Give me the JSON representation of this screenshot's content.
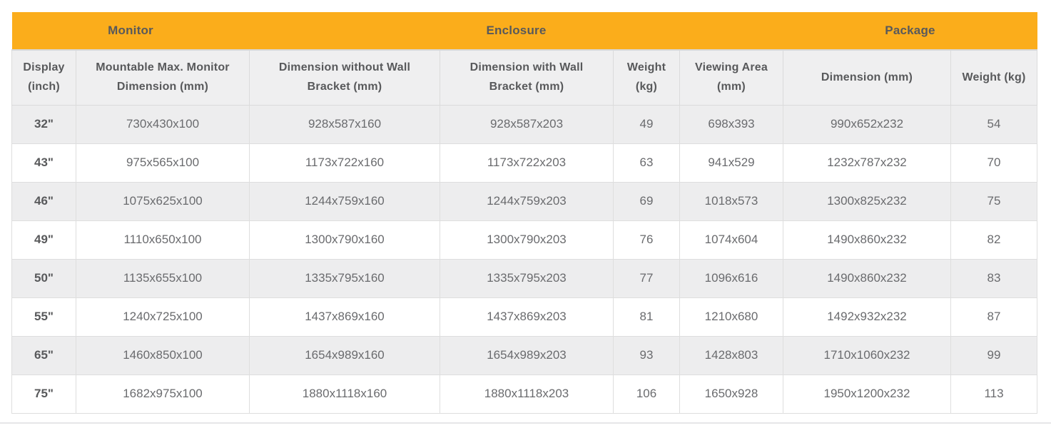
{
  "table": {
    "groups": [
      {
        "label": "Monitor",
        "span": 2
      },
      {
        "label": "Enclosure",
        "span": 4
      },
      {
        "label": "Package",
        "span": 2
      }
    ],
    "columns": [
      "Display (inch)",
      "Mountable Max. Monitor Dimension (mm)",
      "Dimension without Wall Bracket (mm)",
      "Dimension with Wall Bracket (mm)",
      "Weight (kg)",
      "Viewing Area (mm)",
      "Dimension (mm)",
      "Weight (kg)"
    ],
    "rows": [
      [
        "32\"",
        "730x430x100",
        "928x587x160",
        "928x587x203",
        "49",
        "698x393",
        "990x652x232",
        "54"
      ],
      [
        "43\"",
        "975x565x100",
        "1173x722x160",
        "1173x722x203",
        "63",
        "941x529",
        "1232x787x232",
        "70"
      ],
      [
        "46\"",
        "1075x625x100",
        "1244x759x160",
        "1244x759x203",
        "69",
        "1018x573",
        "1300x825x232",
        "75"
      ],
      [
        "49\"",
        "1110x650x100",
        "1300x790x160",
        "1300x790x203",
        "76",
        "1074x604",
        "1490x860x232",
        "82"
      ],
      [
        "50\"",
        "1135x655x100",
        "1335x795x160",
        "1335x795x203",
        "77",
        "1096x616",
        "1490x860x232",
        "83"
      ],
      [
        "55\"",
        "1240x725x100",
        "1437x869x160",
        "1437x869x203",
        "81",
        "1210x680",
        "1492x932x232",
        "87"
      ],
      [
        "65\"",
        "1460x850x100",
        "1654x989x160",
        "1654x989x203",
        "93",
        "1428x803",
        "1710x1060x232",
        "99"
      ],
      [
        "75\"",
        "1682x975x100",
        "1880x1118x160",
        "1880x1118x203",
        "106",
        "1650x928",
        "1950x1200x232",
        "113"
      ]
    ],
    "colors": {
      "group_header_bg": "#FBAD1B",
      "header_text": "#58595B",
      "sub_header_bg": "#EFEFF0",
      "stripe_row_bg": "#EDEDEE",
      "data_text": "#6A6B6E",
      "border": "#DEDEDE"
    }
  }
}
